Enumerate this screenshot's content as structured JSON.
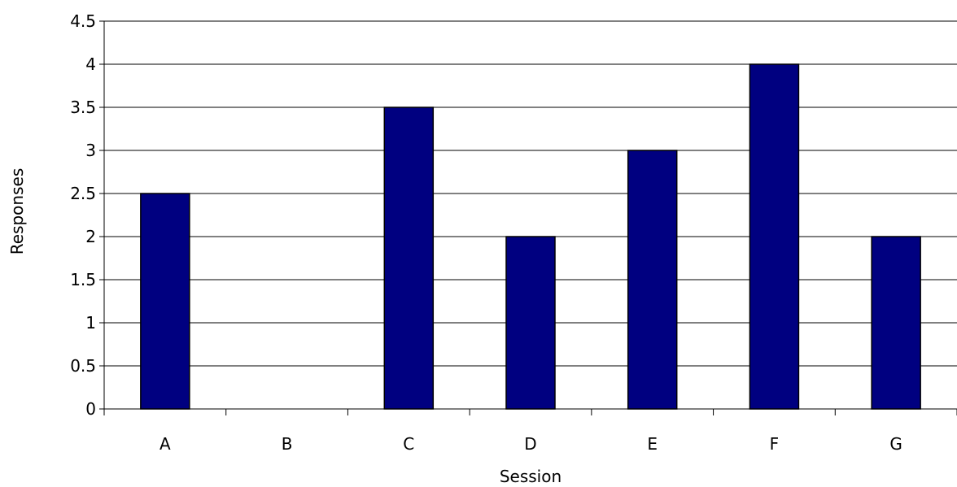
{
  "chart_data": {
    "type": "bar",
    "title": "",
    "xlabel": "Session",
    "ylabel": "Responses",
    "categories": [
      "A",
      "B",
      "C",
      "D",
      "E",
      "F",
      "G"
    ],
    "values": [
      2.5,
      0,
      3.5,
      2,
      3,
      4,
      2
    ],
    "ylim": [
      0,
      4.5
    ],
    "yticks": [
      "0",
      "0.5",
      "1",
      "1.5",
      "2",
      "2.5",
      "3",
      "3.5",
      "4",
      "4.5"
    ],
    "grid": "horizontal",
    "legend": "none",
    "colors": {
      "bar_fill": "#000080",
      "bar_stroke": "#000000",
      "gridline": "#000000",
      "axis": "#000000"
    }
  }
}
